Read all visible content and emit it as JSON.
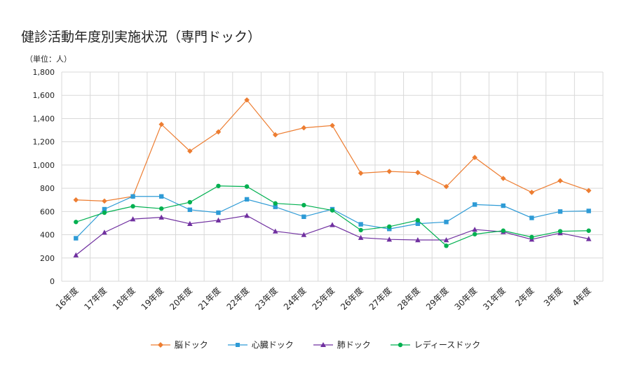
{
  "chart_data": {
    "type": "line",
    "title": "健診活動年度別実施状況（専門ドック）",
    "unit": "（単位：人）",
    "categories": [
      "16年度",
      "17年度",
      "18年度",
      "19年度",
      "20年度",
      "21年度",
      "22年度",
      "23年度",
      "24年度",
      "25年度",
      "26年度",
      "27年度",
      "28年度",
      "29年度",
      "30年度",
      "31年度",
      "2年度",
      "3年度",
      "4年度"
    ],
    "ylim": [
      0,
      1800
    ],
    "yticks": [
      "0",
      "200",
      "400",
      "600",
      "800",
      "1,000",
      "1,200",
      "1,400",
      "1,600",
      "1,800"
    ],
    "grid": true,
    "legend_position": "bottom",
    "series": [
      {
        "name": "脳ドック",
        "color": "#ED7D31",
        "marker": "diamond",
        "values": [
          700,
          690,
          730,
          1350,
          1120,
          1285,
          1560,
          1260,
          1320,
          1340,
          930,
          945,
          935,
          815,
          1065,
          885,
          765,
          865,
          780
        ]
      },
      {
        "name": "心臓ドック",
        "color": "#2E9BD6",
        "marker": "square",
        "values": [
          370,
          620,
          730,
          730,
          615,
          590,
          705,
          640,
          555,
          620,
          490,
          450,
          495,
          510,
          660,
          650,
          545,
          600,
          605
        ]
      },
      {
        "name": "肺ドック",
        "color": "#7030A0",
        "marker": "triangle",
        "values": [
          225,
          420,
          535,
          550,
          495,
          525,
          565,
          430,
          400,
          485,
          375,
          360,
          355,
          355,
          445,
          425,
          360,
          415,
          365
        ]
      },
      {
        "name": "レディースドック",
        "color": "#00B050",
        "marker": "circle",
        "values": [
          510,
          590,
          645,
          625,
          680,
          820,
          815,
          670,
          655,
          610,
          440,
          470,
          525,
          305,
          405,
          435,
          380,
          430,
          435
        ]
      }
    ]
  }
}
